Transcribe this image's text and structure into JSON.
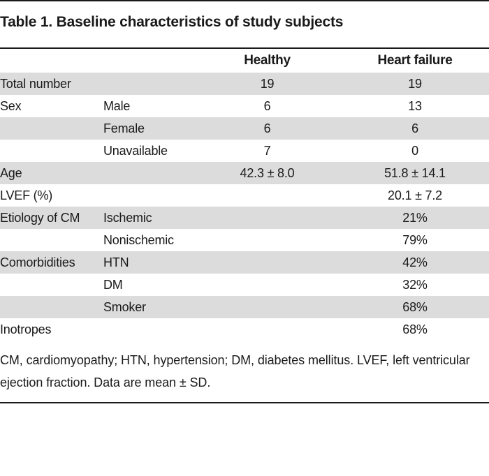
{
  "title": "Table 1. Baseline characteristics of study subjects",
  "columns": {
    "healthy": "Healthy",
    "heart_failure": "Heart failure"
  },
  "rows": [
    {
      "label": "Total number",
      "sub": "",
      "healthy": "19",
      "heart_failure": "19",
      "shaded": true
    },
    {
      "label": "Sex",
      "sub": "Male",
      "healthy": "6",
      "heart_failure": "13",
      "shaded": false
    },
    {
      "label": "",
      "sub": "Female",
      "healthy": "6",
      "heart_failure": "6",
      "shaded": true
    },
    {
      "label": "",
      "sub": "Unavailable",
      "healthy": "7",
      "heart_failure": "0",
      "shaded": false
    },
    {
      "label": "Age",
      "sub": "",
      "healthy": "42.3 ± 8.0",
      "heart_failure": "51.8 ± 14.1",
      "shaded": true
    },
    {
      "label": "LVEF (%)",
      "sub": "",
      "healthy": "",
      "heart_failure": "20.1 ± 7.2",
      "shaded": false
    },
    {
      "label": "Etiology of CM",
      "sub": "Ischemic",
      "healthy": "",
      "heart_failure": "21%",
      "shaded": true
    },
    {
      "label": "",
      "sub": "Nonischemic",
      "healthy": "",
      "heart_failure": "79%",
      "shaded": false
    },
    {
      "label": "Comorbidities",
      "sub": "HTN",
      "healthy": "",
      "heart_failure": "42%",
      "shaded": true
    },
    {
      "label": "",
      "sub": "DM",
      "healthy": "",
      "heart_failure": "32%",
      "shaded": false
    },
    {
      "label": "",
      "sub": "Smoker",
      "healthy": "",
      "heart_failure": "68%",
      "shaded": true
    },
    {
      "label": "Inotropes",
      "sub": "",
      "healthy": "",
      "heart_failure": "68%",
      "shaded": false
    }
  ],
  "footnote": "CM, cardiomyopathy; HTN, hypertension; DM, diabetes mellitus. LVEF, left ventricular ejection fraction. Data are mean ± SD."
}
